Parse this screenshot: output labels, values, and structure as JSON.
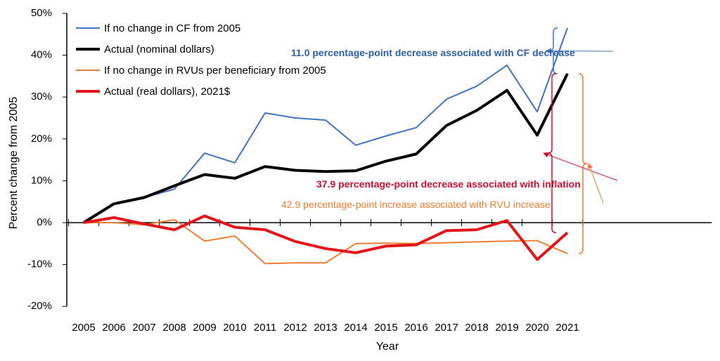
{
  "chart_data": {
    "type": "line",
    "title": "",
    "xlabel": "Year",
    "ylabel": "Percent change from 2005",
    "ylim": [
      -20,
      50
    ],
    "yticks": [
      "-20%",
      "-10%",
      "0%",
      "10%",
      "20%",
      "30%",
      "40%",
      "50%"
    ],
    "ytick_values": [
      -20,
      -10,
      0,
      10,
      20,
      30,
      40,
      50
    ],
    "x": [
      "2005",
      "2006",
      "2007",
      "2008",
      "2009",
      "2010",
      "2011",
      "2012",
      "2013",
      "2014",
      "2015",
      "2016",
      "2017",
      "2018",
      "2019",
      "2020",
      "2021"
    ],
    "grid": false,
    "legend_position": "top-left",
    "series": [
      {
        "name": "If no change in CF from 2005",
        "color": "#4472C4",
        "values": [
          0,
          4.5,
          6.0,
          8.0,
          16.6,
          14.3,
          26.2,
          25.0,
          24.5,
          18.5,
          20.7,
          22.7,
          29.5,
          32.6,
          37.6,
          26.5,
          46.5
        ]
      },
      {
        "name": "Actual (nominal dollars)",
        "color": "#000000",
        "values": [
          0,
          4.5,
          6.0,
          8.8,
          11.5,
          10.6,
          13.4,
          12.5,
          12.2,
          12.4,
          14.7,
          16.4,
          23.2,
          26.8,
          31.6,
          20.9,
          35.6
        ]
      },
      {
        "name": "If no change in RVUs per beneficiary from 2005",
        "color": "#ED7D31",
        "values": [
          0,
          0.0,
          -0.5,
          0.7,
          -4.4,
          -3.2,
          -9.8,
          -9.6,
          -9.6,
          -5.0,
          -4.9,
          -5.0,
          -4.8,
          -4.6,
          -4.4,
          -4.3,
          -7.4
        ]
      },
      {
        "name": "Actual (real dollars), 2021$",
        "color": "#E3151A",
        "values": [
          0,
          1.2,
          -0.3,
          -1.7,
          1.6,
          -1.1,
          -1.7,
          -4.5,
          -6.2,
          -7.2,
          -5.6,
          -5.3,
          -1.9,
          -1.7,
          0.5,
          -8.8,
          -2.4
        ]
      }
    ],
    "annotations": {
      "cf": {
        "text": "11.0 percentage-point decrease associated with CF decrease",
        "color": "#2E5FA8"
      },
      "inflation": {
        "text": "37.9 percentage-point decrease associated with inflation",
        "color": "#C8102E"
      },
      "rvu": {
        "text": "42.9 percentage-point increase associated with RVU increase",
        "color": "#ED7D31"
      }
    }
  }
}
